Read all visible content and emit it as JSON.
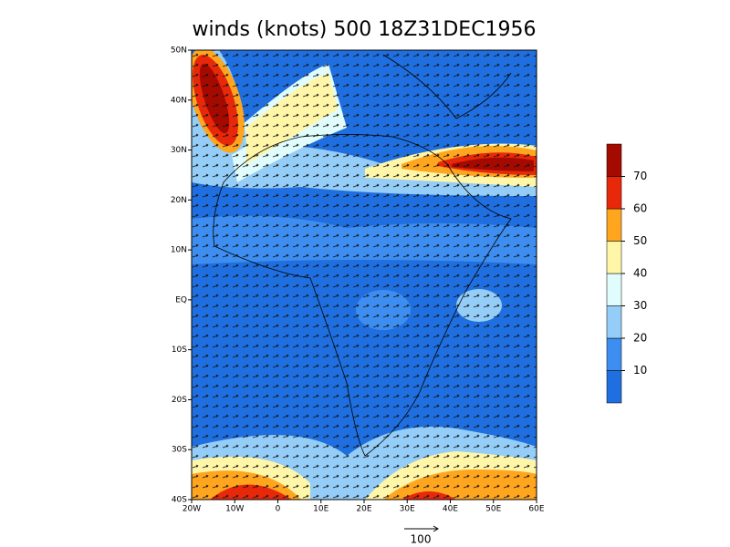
{
  "map": {
    "title": "winds (knots) 500 18Z31DEC1956",
    "xlim": [
      -20,
      60
    ],
    "ylim": [
      -40,
      50
    ],
    "xticks": [
      {
        "value": -20,
        "label": "20W"
      },
      {
        "value": -10,
        "label": "10W"
      },
      0,
      {
        "value": 10,
        "label": "10E"
      },
      {
        "value": 20,
        "label": "20E"
      },
      {
        "value": 30,
        "label": "30E"
      },
      {
        "value": 40,
        "label": "40E"
      },
      {
        "value": 50,
        "label": "50E"
      },
      {
        "value": 60,
        "label": "60E"
      }
    ],
    "yticks": [
      {
        "value": -40,
        "label": "40S"
      },
      {
        "value": -30,
        "label": "30S"
      },
      {
        "value": -20,
        "label": "20S"
      },
      {
        "value": -10,
        "label": "10S"
      },
      {
        "value": 0,
        "label": "EQ"
      },
      {
        "value": 10,
        "label": "10N"
      },
      {
        "value": 20,
        "label": "20N"
      },
      {
        "value": 30,
        "label": "30N"
      },
      {
        "value": 40,
        "label": "40N"
      },
      {
        "value": 50,
        "label": "50N"
      }
    ],
    "colorbar": {
      "levels": [
        10,
        20,
        30,
        40,
        50,
        60,
        70
      ],
      "colors": [
        "#1f6fe0",
        "#3d8ef0",
        "#94cdf7",
        "#e0fcfc",
        "#fff6a8",
        "#ffa51e",
        "#e8280a",
        "#a50a00"
      ]
    },
    "vector_reference": "100"
  }
}
